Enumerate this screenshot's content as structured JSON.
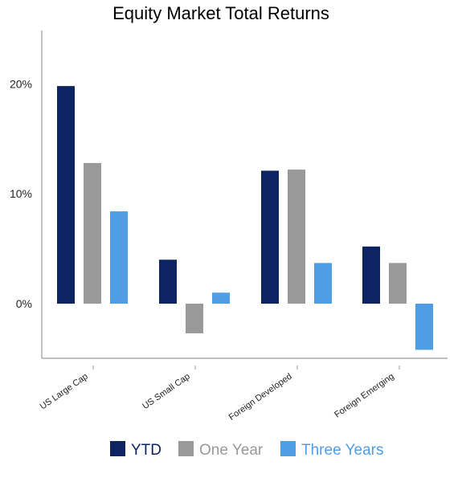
{
  "chart_data": {
    "type": "bar",
    "title": "Equity Market Total Returns",
    "xlabel": "",
    "ylabel": "",
    "categories": [
      "US Large Cap",
      "US Small Cap",
      "Foreign Developed",
      "Foreign Emerging"
    ],
    "series": [
      {
        "name": "YTD",
        "color": "#0c2461",
        "values": [
          19.8,
          4.0,
          12.1,
          5.2
        ]
      },
      {
        "name": "One Year",
        "color": "#999999",
        "values": [
          12.8,
          -2.7,
          12.2,
          3.7
        ]
      },
      {
        "name": "Three Years",
        "color": "#4f9de3",
        "values": [
          8.4,
          1.0,
          3.7,
          -4.2
        ]
      }
    ],
    "yticks": [
      0,
      10,
      20
    ],
    "ytick_labels": [
      "0%",
      "10%",
      "20%"
    ],
    "ylim": [
      -5,
      25
    ],
    "grid": false,
    "legend_position": "bottom"
  }
}
